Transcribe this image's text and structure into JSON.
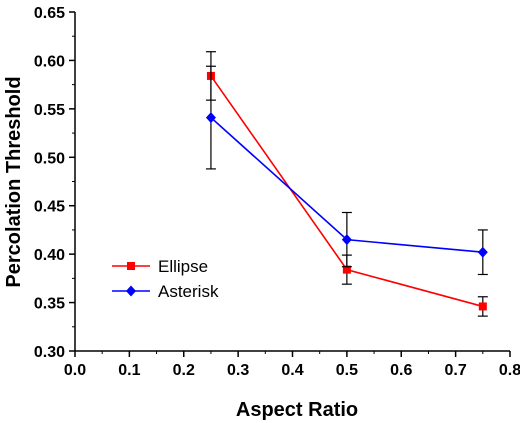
{
  "chart_data": {
    "type": "line",
    "title": "",
    "xlabel": "Aspect Ratio",
    "ylabel": "Percolation Threshold",
    "xlim": [
      0.0,
      0.8
    ],
    "ylim": [
      0.3,
      0.65
    ],
    "xticks": [
      "0.0",
      "0.1",
      "0.2",
      "0.3",
      "0.4",
      "0.5",
      "0.6",
      "0.7",
      "0.8"
    ],
    "yticks": [
      "0.30",
      "0.35",
      "0.40",
      "0.45",
      "0.50",
      "0.55",
      "0.60",
      "0.65"
    ],
    "grid": false,
    "legend_position": "lower-left",
    "series": [
      {
        "name": "Ellipse",
        "color": "#ff0000",
        "marker": "square",
        "x": [
          0.25,
          0.5,
          0.75
        ],
        "y": [
          0.584,
          0.384,
          0.346
        ],
        "error": [
          0.025,
          0.015,
          0.01
        ]
      },
      {
        "name": "Asterisk",
        "color": "#0000ff",
        "marker": "diamond",
        "x": [
          0.25,
          0.5,
          0.75
        ],
        "y": [
          0.541,
          0.415,
          0.402
        ],
        "error": [
          0.053,
          0.028,
          0.023
        ]
      }
    ]
  }
}
